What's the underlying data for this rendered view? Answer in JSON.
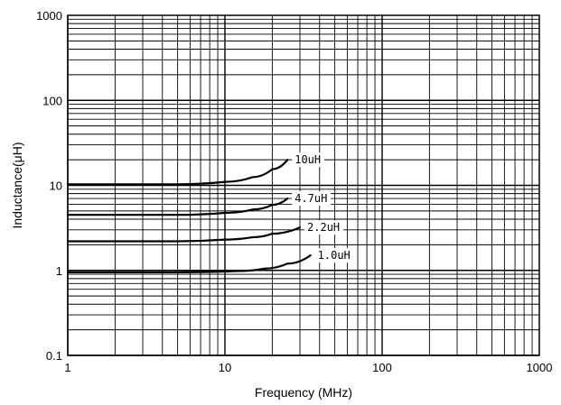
{
  "chart_data": {
    "type": "line",
    "title": "",
    "xlabel": "Frequency (MHz)",
    "ylabel": "Inductance(μH)",
    "x_scale": "log",
    "y_scale": "log",
    "xlim": [
      1,
      1000
    ],
    "ylim": [
      0.1,
      1000
    ],
    "x_ticks": [
      {
        "value": 1,
        "label": "1"
      },
      {
        "value": 10,
        "label": "10"
      },
      {
        "value": 100,
        "label": "100"
      },
      {
        "value": 1000,
        "label": "1000"
      }
    ],
    "y_ticks": [
      {
        "value": 0.1,
        "label": "0.1"
      },
      {
        "value": 1,
        "label": "1"
      },
      {
        "value": 10,
        "label": "10"
      },
      {
        "value": 100,
        "label": "100"
      },
      {
        "value": 1000,
        "label": "1000"
      }
    ],
    "grid": true,
    "legend": "none",
    "line_color": "#000000",
    "series": [
      {
        "label": "10uH",
        "points": [
          [
            1,
            10.3
          ],
          [
            5,
            10.3
          ],
          [
            10,
            11.0
          ],
          [
            15,
            12.5
          ],
          [
            20,
            15.5
          ],
          [
            25,
            20.0
          ]
        ]
      },
      {
        "label": "4.7uH",
        "points": [
          [
            1,
            4.5
          ],
          [
            5,
            4.5
          ],
          [
            10,
            4.75
          ],
          [
            15,
            5.2
          ],
          [
            20,
            5.9
          ],
          [
            25,
            7.0
          ]
        ]
      },
      {
        "label": "2.2uH",
        "points": [
          [
            1,
            2.2
          ],
          [
            5,
            2.2
          ],
          [
            10,
            2.3
          ],
          [
            15,
            2.45
          ],
          [
            20,
            2.7
          ],
          [
            30,
            3.2
          ]
        ]
      },
      {
        "label": "1.0uH",
        "points": [
          [
            1,
            0.95
          ],
          [
            5,
            0.95
          ],
          [
            12,
            0.98
          ],
          [
            18,
            1.05
          ],
          [
            25,
            1.2
          ],
          [
            35,
            1.5
          ]
        ]
      }
    ]
  }
}
